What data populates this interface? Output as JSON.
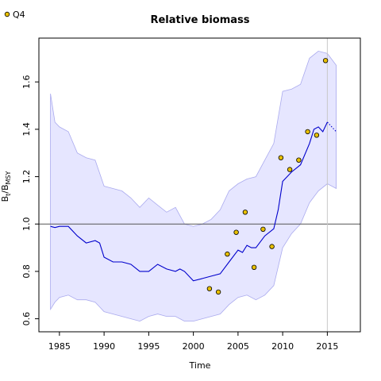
{
  "chart_data": {
    "type": "line",
    "title": "Relative biomass",
    "xlabel": "Time",
    "ylabel_main": "B",
    "ylabel_sub1": "t",
    "ylabel_slash": "/B",
    "ylabel_sub2": "MSY",
    "xlim": [
      1982.7,
      2018.7
    ],
    "ylim": [
      0.545,
      1.785
    ],
    "x_ticks": [
      1985,
      1990,
      1995,
      2000,
      2005,
      2010,
      2015
    ],
    "y_ticks": [
      0.6,
      0.8,
      1.0,
      1.2,
      1.4,
      1.6
    ],
    "reference_line_y": 1.0,
    "reference_line_x": 2015,
    "grid": false,
    "legend": [
      {
        "name": "Q4",
        "marker": "circle",
        "color": "#e8c000",
        "position": "top-left"
      }
    ],
    "band": {
      "name": "CI",
      "color": "#e6e6ff",
      "edge_color": "#aaaaee",
      "x": [
        1984,
        1984.5,
        1985,
        1986,
        1987,
        1988,
        1989,
        1990,
        1991,
        1992,
        1993,
        1994,
        1995,
        1996,
        1997,
        1998,
        1999,
        2000,
        2001,
        2002,
        2003,
        2004,
        2005,
        2006,
        2007,
        2008,
        2009,
        2010,
        2011,
        2012,
        2013,
        2014,
        2015,
        2016
      ],
      "upper": [
        1.55,
        1.43,
        1.41,
        1.39,
        1.3,
        1.28,
        1.27,
        1.16,
        1.15,
        1.14,
        1.11,
        1.07,
        1.11,
        1.08,
        1.05,
        1.07,
        1.0,
        0.99,
        1.0,
        1.02,
        1.06,
        1.14,
        1.17,
        1.19,
        1.2,
        1.27,
        1.34,
        1.56,
        1.57,
        1.59,
        1.7,
        1.73,
        1.72,
        1.67
      ],
      "lower": [
        0.64,
        0.67,
        0.69,
        0.7,
        0.68,
        0.68,
        0.67,
        0.63,
        0.62,
        0.61,
        0.6,
        0.59,
        0.61,
        0.62,
        0.61,
        0.61,
        0.59,
        0.59,
        0.6,
        0.61,
        0.62,
        0.66,
        0.69,
        0.7,
        0.68,
        0.7,
        0.74,
        0.9,
        0.96,
        1.0,
        1.09,
        1.14,
        1.17,
        1.15
      ]
    },
    "series": [
      {
        "name": "Estimate",
        "color": "#0000cc",
        "x": [
          1984,
          1984.5,
          1985,
          1986,
          1987,
          1988,
          1989,
          1989.5,
          1990,
          1991,
          1992,
          1993,
          1994,
          1995,
          1996,
          1997,
          1998,
          1998.5,
          1999,
          2000,
          2001,
          2002,
          2003,
          2004,
          2005,
          2005.5,
          2006,
          2006.5,
          2007,
          2008,
          2009,
          2009.5,
          2010,
          2011,
          2012,
          2013,
          2013.5,
          2014,
          2014.5,
          2015
        ],
        "y": [
          0.99,
          0.985,
          0.99,
          0.99,
          0.95,
          0.92,
          0.93,
          0.92,
          0.86,
          0.84,
          0.84,
          0.83,
          0.8,
          0.8,
          0.83,
          0.81,
          0.8,
          0.81,
          0.8,
          0.76,
          0.77,
          0.78,
          0.79,
          0.84,
          0.89,
          0.88,
          0.91,
          0.9,
          0.9,
          0.95,
          0.98,
          1.06,
          1.18,
          1.22,
          1.25,
          1.34,
          1.4,
          1.41,
          1.39,
          1.43
        ]
      },
      {
        "name": "Projection",
        "color": "#0000cc",
        "dashed": true,
        "x": [
          2015,
          2015.5,
          2016
        ],
        "y": [
          1.43,
          1.41,
          1.39
        ]
      }
    ],
    "points": {
      "name": "Q4",
      "fill": "#e8c000",
      "stroke": "#000000",
      "x": [
        2001.8,
        2002.8,
        2003.8,
        2004.8,
        2005.8,
        2006.8,
        2007.8,
        2008.8,
        2009.8,
        2010.8,
        2011.8,
        2012.8,
        2013.8,
        2014.8
      ],
      "y": [
        0.727,
        0.713,
        0.873,
        0.965,
        1.05,
        0.817,
        0.978,
        0.905,
        1.28,
        1.23,
        1.27,
        1.39,
        1.375,
        1.69
      ]
    }
  }
}
